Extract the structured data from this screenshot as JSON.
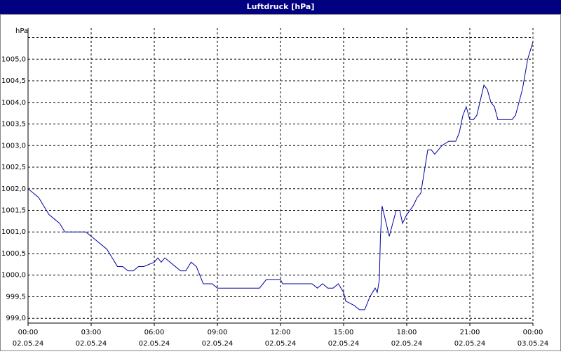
{
  "chart_data": {
    "type": "line",
    "title": "Luftdruck [hPa]",
    "ylabel": "hPa",
    "x": [
      0,
      0.25,
      0.5,
      0.75,
      1.0,
      1.25,
      1.5,
      1.75,
      2.0,
      2.5,
      2.75,
      3.0,
      3.25,
      3.5,
      3.75,
      4.0,
      4.25,
      4.5,
      4.75,
      5.0,
      5.25,
      5.5,
      6.0,
      6.17,
      6.33,
      6.5,
      6.75,
      7.0,
      7.25,
      7.5,
      7.75,
      8.0,
      8.33,
      8.75,
      9.0,
      11.0,
      11.33,
      12.0,
      12.1,
      13.0,
      13.5,
      13.75,
      14.0,
      14.25,
      14.5,
      14.75,
      15.0,
      15.1,
      15.5,
      15.75,
      16.0,
      16.25,
      16.5,
      16.6,
      16.7,
      16.75,
      16.83,
      17.17,
      17.5,
      17.67,
      17.8,
      18.0,
      18.3,
      18.5,
      18.67,
      19.0,
      19.17,
      19.33,
      19.67,
      20.0,
      20.33,
      20.5,
      20.67,
      20.83,
      21.0,
      21.17,
      21.33,
      21.67,
      21.83,
      22.0,
      22.17,
      22.33,
      23.0,
      23.17,
      23.5,
      23.75,
      24.0
    ],
    "series": [
      {
        "name": "Luftdruck",
        "color": "#0000a0",
        "values": [
          1002.0,
          1001.9,
          1001.8,
          1001.6,
          1001.4,
          1001.3,
          1001.2,
          1001.0,
          1001.0,
          1001.0,
          1001.0,
          1000.9,
          1000.8,
          1000.7,
          1000.6,
          1000.4,
          1000.2,
          1000.2,
          1000.1,
          1000.1,
          1000.2,
          1000.2,
          1000.3,
          1000.4,
          1000.3,
          1000.4,
          1000.3,
          1000.2,
          1000.1,
          1000.1,
          1000.3,
          1000.2,
          999.8,
          999.8,
          999.7,
          999.7,
          999.9,
          999.9,
          999.8,
          999.8,
          999.8,
          999.7,
          999.8,
          999.7,
          999.7,
          999.8,
          999.6,
          999.4,
          999.3,
          999.2,
          999.2,
          999.5,
          999.7,
          999.6,
          999.9,
          1000.9,
          1001.6,
          1000.9,
          1001.5,
          1001.5,
          1001.2,
          1001.4,
          1001.6,
          1001.8,
          1001.9,
          1002.9,
          1002.9,
          1002.8,
          1003.0,
          1003.1,
          1003.1,
          1003.3,
          1003.7,
          1003.9,
          1003.6,
          1003.6,
          1003.7,
          1004.4,
          1004.3,
          1004.0,
          1003.9,
          1003.6,
          1003.6,
          1003.7,
          1004.3,
          1005.0,
          1005.4
        ]
      }
    ],
    "xlim": [
      0,
      24
    ],
    "xticks": [
      {
        "value": 0,
        "label": "00:00",
        "date": "02.05.24"
      },
      {
        "value": 3,
        "label": "03:00",
        "date": "02.05.24"
      },
      {
        "value": 6,
        "label": "06:00",
        "date": "02.05.24"
      },
      {
        "value": 9,
        "label": "09:00",
        "date": "02.05.24"
      },
      {
        "value": 12,
        "label": "12:00",
        "date": "02.05.24"
      },
      {
        "value": 15,
        "label": "15:00",
        "date": "02.05.24"
      },
      {
        "value": 18,
        "label": "18:00",
        "date": "02.05.24"
      },
      {
        "value": 21,
        "label": "21:00",
        "date": "02.05.24"
      },
      {
        "value": 24,
        "label": "00:00",
        "date": "03.05.24"
      }
    ],
    "ylim": [
      998.89,
      1005.72
    ],
    "yticks": [
      {
        "value": 999,
        "label": "999,0"
      },
      {
        "value": 999.5,
        "label": "999,5"
      },
      {
        "value": 1000,
        "label": "1000,0"
      },
      {
        "value": 1000.5,
        "label": "1000,5"
      },
      {
        "value": 1001,
        "label": "1001,0"
      },
      {
        "value": 1001.5,
        "label": "1001,5"
      },
      {
        "value": 1002,
        "label": "1002,0"
      },
      {
        "value": 1002.5,
        "label": "1002,5"
      },
      {
        "value": 1003,
        "label": "1003,0"
      },
      {
        "value": 1003.5,
        "label": "1003,5"
      },
      {
        "value": 1004,
        "label": "1004,0"
      },
      {
        "value": 1004.5,
        "label": "1004,5"
      },
      {
        "value": 1005,
        "label": "1005,0"
      },
      {
        "value": 1005.5,
        "label": null
      }
    ],
    "grid": true
  }
}
